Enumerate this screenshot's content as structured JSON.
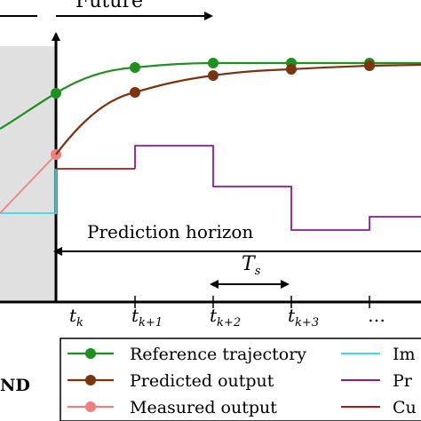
{
  "header": {
    "future_label": "Future",
    "past_fragment": "—"
  },
  "annotations": {
    "prediction_horizon": "Prediction horizon",
    "sampling_time": {
      "main": "T",
      "sub": "s"
    }
  },
  "time_axis": {
    "ticks": [
      {
        "main": "t",
        "sub": "k"
      },
      {
        "main": "t",
        "sub": "k+1"
      },
      {
        "main": "t",
        "sub": "k+2"
      },
      {
        "main": "t",
        "sub": "k+3"
      },
      {
        "main": "…",
        "sub": ""
      }
    ]
  },
  "left_fragment": "ND",
  "legend": {
    "items": [
      {
        "label": "Reference trajectory",
        "color": "#1f8f1f",
        "marker": "circle"
      },
      {
        "label": "Predicted output",
        "color": "#7a3410",
        "marker": "circle"
      },
      {
        "label": "Measured output",
        "color": "#f08080",
        "marker": "circle"
      },
      {
        "label": "Im",
        "color": "#33e0e8",
        "marker": "none"
      },
      {
        "label": "Pr",
        "color": "#8b1a9a",
        "marker": "none"
      },
      {
        "label": "Cu",
        "color": "#b01818",
        "marker": "none"
      }
    ]
  },
  "colors": {
    "past_region": "#e0e0e0",
    "reference": "#1f8f1f",
    "predicted": "#7a3410",
    "measured": "#f08080",
    "implemented": "#33e0e8",
    "predicted_control": "#8b1a9a",
    "current_control": "#b01818"
  }
}
